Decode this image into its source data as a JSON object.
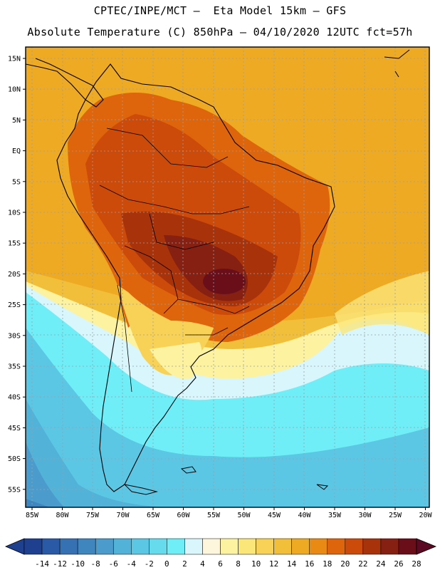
{
  "header": {
    "line1": "CPTEC/INPE/MCT —  Eta Model 15km — GFS",
    "line2": "Absolute Temperature (C) 850hPa — 04/10/2020 12UTC fct=57h"
  },
  "axes": {
    "lat_labels": [
      "15N",
      "10N",
      "5N",
      "EQ",
      "5S",
      "10S",
      "15S",
      "20S",
      "25S",
      "30S",
      "35S",
      "40S",
      "45S",
      "50S",
      "55S"
    ],
    "lon_labels": [
      "85W",
      "80W",
      "75W",
      "70W",
      "65W",
      "60W",
      "55W",
      "50W",
      "45W",
      "40W",
      "35W",
      "30W",
      "25W",
      "20W"
    ]
  },
  "colorbar": {
    "labels": [
      "-14",
      "-12",
      "-10",
      "-8",
      "-6",
      "-4",
      "-2",
      "0",
      "2",
      "4",
      "6",
      "8",
      "10",
      "12",
      "14",
      "16",
      "18",
      "20",
      "22",
      "24",
      "26",
      "28"
    ],
    "colors": [
      "#1f3f8f",
      "#2a5aa6",
      "#3571b3",
      "#3f86bf",
      "#4b9ccc",
      "#52b2d8",
      "#5cc7e4",
      "#66dbee",
      "#70eef8",
      "#d8f6fb",
      "#fdf6dc",
      "#fdf2a0",
      "#fbe67a",
      "#f7d257",
      "#f2bf3a",
      "#eeaa22",
      "#e88a14",
      "#df650c",
      "#cc4a0a",
      "#a8320a",
      "#852012",
      "#6a0f1a"
    ],
    "under_color": "#1f3f8f",
    "over_color": "#5a0a22"
  }
}
